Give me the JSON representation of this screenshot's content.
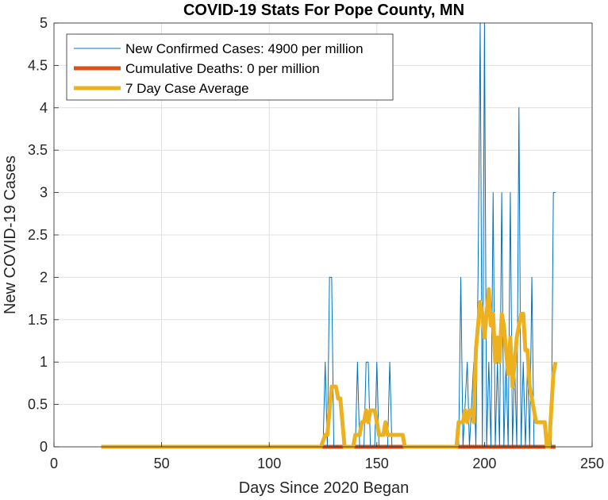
{
  "chart_data": {
    "type": "line",
    "title": "COVID-19 Stats For Pope County, MN",
    "xlabel": "Days Since 2020 Began",
    "ylabel": "New COVID-19 Cases",
    "xlim": [
      0,
      250
    ],
    "ylim": [
      0,
      5
    ],
    "xticks": [
      0,
      50,
      100,
      150,
      200,
      250
    ],
    "yticks": [
      0,
      0.5,
      1,
      1.5,
      2,
      2.5,
      3,
      3.5,
      4,
      4.5,
      5
    ],
    "xtick_labels": [
      "0",
      "50",
      "100",
      "150",
      "200",
      "250"
    ],
    "ytick_labels": [
      "0",
      "0.5",
      "1",
      "1.5",
      "2",
      "2.5",
      "3",
      "3.5",
      "4",
      "4.5",
      "5"
    ],
    "grid": true,
    "legend_position": "top-left",
    "series": [
      {
        "name": "New Confirmed Cases: 4900 per million",
        "color": "#0072BD",
        "line_width": "thin",
        "points": [
          [
            22,
            0
          ],
          [
            125,
            0
          ],
          [
            126,
            1
          ],
          [
            127,
            0
          ],
          [
            128,
            2
          ],
          [
            129,
            2
          ],
          [
            130,
            0
          ],
          [
            140,
            0
          ],
          [
            141,
            1
          ],
          [
            142,
            0
          ],
          [
            144,
            0
          ],
          [
            145,
            1
          ],
          [
            146,
            1
          ],
          [
            147,
            0
          ],
          [
            149,
            0
          ],
          [
            150,
            1
          ],
          [
            151,
            0
          ],
          [
            155,
            0
          ],
          [
            156,
            1
          ],
          [
            157,
            0
          ],
          [
            188,
            0
          ],
          [
            189,
            2
          ],
          [
            190,
            0
          ],
          [
            192,
            1
          ],
          [
            193,
            0
          ],
          [
            195,
            1
          ],
          [
            196,
            0
          ],
          [
            197,
            2
          ],
          [
            198,
            5
          ],
          [
            199,
            0
          ],
          [
            200,
            5
          ],
          [
            201,
            0
          ],
          [
            202,
            1
          ],
          [
            203,
            0
          ],
          [
            204,
            3
          ],
          [
            205,
            0
          ],
          [
            206,
            1
          ],
          [
            207,
            0
          ],
          [
            208,
            3
          ],
          [
            209,
            0
          ],
          [
            210,
            1
          ],
          [
            211,
            0
          ],
          [
            212,
            3
          ],
          [
            213,
            0
          ],
          [
            214,
            1
          ],
          [
            215,
            0
          ],
          [
            216,
            4
          ],
          [
            217,
            0
          ],
          [
            218,
            1
          ],
          [
            219,
            0
          ],
          [
            220,
            1
          ],
          [
            221,
            0
          ],
          [
            222,
            2
          ],
          [
            223,
            0
          ],
          [
            231,
            0
          ],
          [
            232,
            3
          ],
          [
            233,
            3
          ]
        ]
      },
      {
        "name": "Cumulative Deaths: 0 per million",
        "color": "#D95319",
        "line_width": "thick",
        "points": [
          [
            22,
            0
          ],
          [
            233,
            0
          ]
        ]
      },
      {
        "name": "7 Day Case Average",
        "color": "#EDB120",
        "line_width": "thick",
        "points": [
          [
            22,
            0
          ],
          [
            124,
            0
          ],
          [
            126,
            0.14
          ],
          [
            127,
            0.14
          ],
          [
            128,
            0.43
          ],
          [
            129,
            0.71
          ],
          [
            131,
            0.71
          ],
          [
            132,
            0.57
          ],
          [
            133,
            0.57
          ],
          [
            134,
            0.29
          ],
          [
            135,
            0
          ],
          [
            139,
            0
          ],
          [
            140,
            0.14
          ],
          [
            142,
            0.14
          ],
          [
            143,
            0.29
          ],
          [
            144,
            0.29
          ],
          [
            145,
            0.43
          ],
          [
            146,
            0.29
          ],
          [
            147,
            0.43
          ],
          [
            149,
            0.43
          ],
          [
            150,
            0.29
          ],
          [
            151,
            0.14
          ],
          [
            153,
            0.14
          ],
          [
            154,
            0.29
          ],
          [
            155,
            0.14
          ],
          [
            162,
            0.14
          ],
          [
            163,
            0
          ],
          [
            187,
            0
          ],
          [
            188,
            0.29
          ],
          [
            190,
            0.29
          ],
          [
            191,
            0.43
          ],
          [
            192,
            0.29
          ],
          [
            193,
            0.43
          ],
          [
            194,
            0.43
          ],
          [
            195,
            0.29
          ],
          [
            196,
            1.14
          ],
          [
            197,
            1.43
          ],
          [
            198,
            1.71
          ],
          [
            199,
            1.57
          ],
          [
            200,
            1.29
          ],
          [
            201,
            1.57
          ],
          [
            202,
            1.86
          ],
          [
            203,
            1.43
          ],
          [
            204,
            1.57
          ],
          [
            205,
            1.0
          ],
          [
            206,
            1.29
          ],
          [
            207,
            1.0
          ],
          [
            208,
            1.57
          ],
          [
            209,
            1.43
          ],
          [
            210,
            1.14
          ],
          [
            211,
            0.86
          ],
          [
            212,
            1.29
          ],
          [
            213,
            0.71
          ],
          [
            214,
            1.0
          ],
          [
            215,
            1.29
          ],
          [
            216,
            1.43
          ],
          [
            217,
            1.57
          ],
          [
            218,
            1.57
          ],
          [
            219,
            1.14
          ],
          [
            220,
            1.14
          ],
          [
            221,
            0.71
          ],
          [
            222,
            0.57
          ],
          [
            223,
            0.43
          ],
          [
            224,
            0.29
          ],
          [
            228,
            0.29
          ],
          [
            229,
            0
          ],
          [
            230,
            0
          ],
          [
            231,
            0.43
          ],
          [
            232,
            0.86
          ],
          [
            233,
            1.0
          ]
        ]
      }
    ]
  }
}
